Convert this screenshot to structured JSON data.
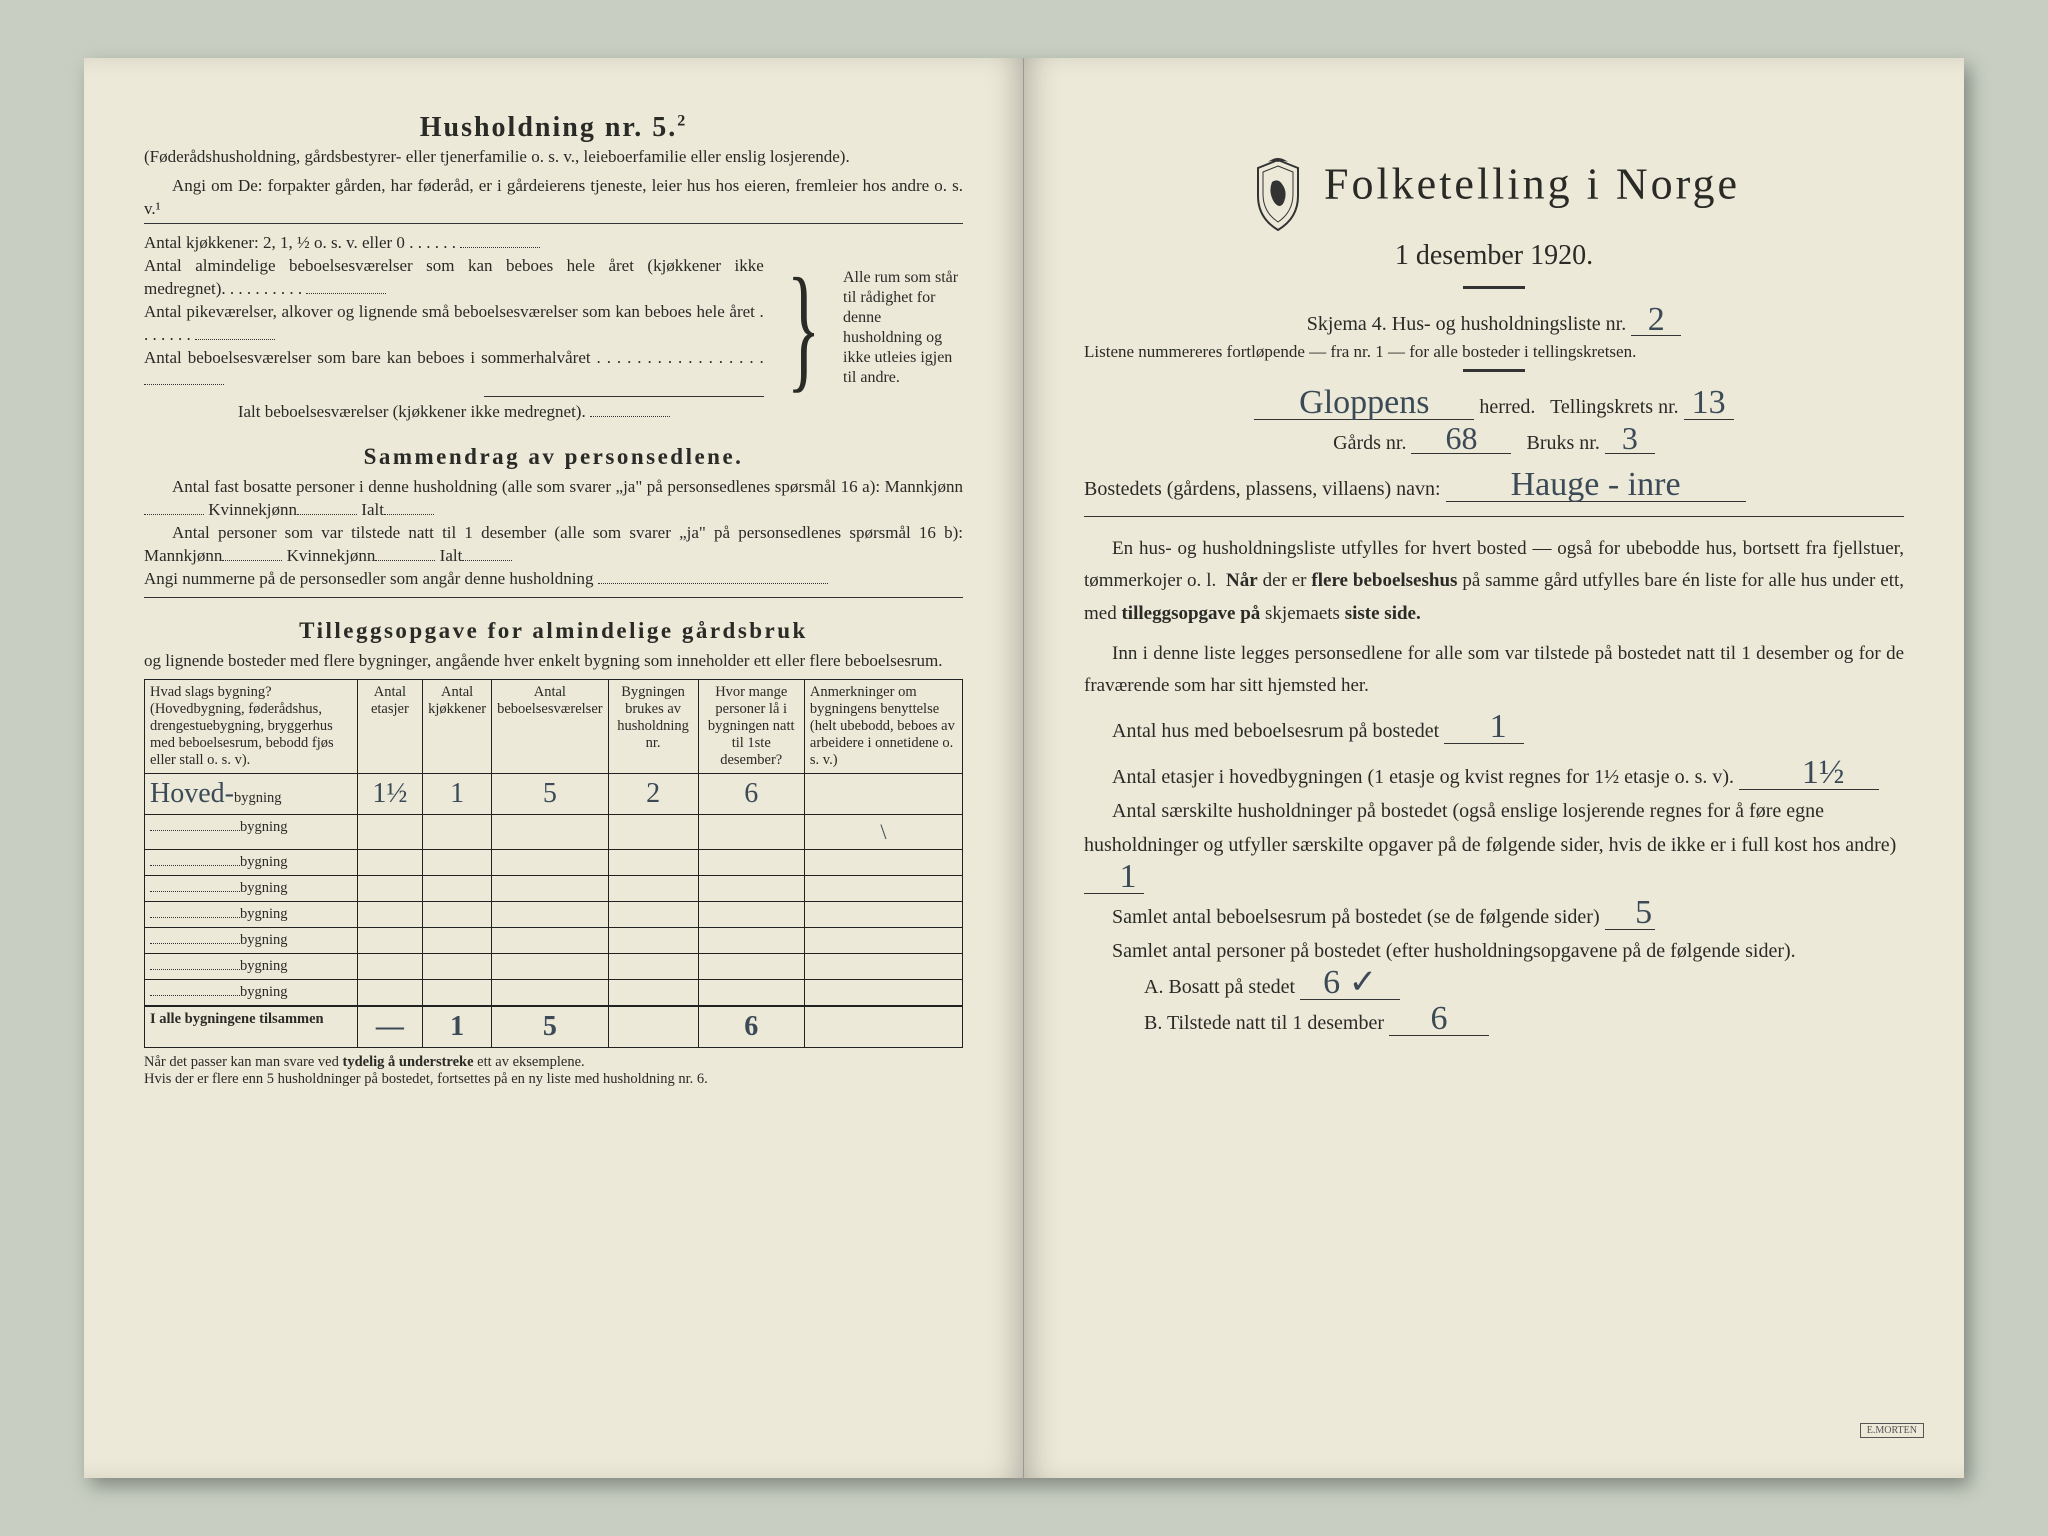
{
  "left": {
    "heading": "Husholdning nr. 5.",
    "heading_sup": "2",
    "sub1": "(Føderådshusholdning, gårdsbestyrer- eller tjenerfamilie o. s. v., leieboerfamilie eller enslig losjerende).",
    "sub2": "Angi om De: forpakter gården, har føderåd, er i gårdeierens tjeneste, leier hus hos eieren, fremleier hos andre o. s. v.¹",
    "kitchen_line": "Antal kjøkkener: 2, 1, ½ o. s. v. eller 0",
    "room_lines": [
      "Antal almindelige beboelsesværelser som kan beboes hele året (kjøkkener ikke medregnet).",
      "Antal pikeværelser, alkover og lignende små beboelsesværelser som kan beboes hele året",
      "Antal beboelsesværelser som bare kan beboes i sommerhalvåret"
    ],
    "room_total": "Ialt beboelsesværelser (kjøkkener ikke medregnet).",
    "brace_text": "Alle rum som står til rådighet for denne husholdning og ikke utleies igjen til andre.",
    "summary_title": "Sammendrag av personsedlene.",
    "summary_l1a": "Antal fast bosatte personer i denne husholdning (alle som svarer „ja\" på personsedlenes spørsmål 16 a): Mannkjønn",
    "summary_kvin": "Kvinnekjønn",
    "summary_ialt": "Ialt",
    "summary_l2a": "Antal personer som var tilstede natt til 1 desember (alle som svarer „ja\" på personsedlenes spørsmål 16 b): Mannkjønn",
    "summary_l3": "Angi nummerne på de personsedler som angår denne husholdning",
    "supp_title": "Tilleggsopgave for almindelige gårdsbruk",
    "supp_sub": "og lignende bosteder med flere bygninger, angående hver enkelt bygning som inneholder ett eller flere beboelsesrum.",
    "table": {
      "headers": [
        "Hvad slags bygning?\n(Hovedbygning, føderådshus, drengestuebygning, bryggerhus med beboelsesrum, bebodd fjøs eller stall o. s. v).",
        "Antal etasjer",
        "Antal kjøkkener",
        "Antal beboelsesværelser",
        "Bygningen brukes av husholdning nr.",
        "Hvor mange personer lå i bygningen natt til 1ste desember?",
        "Anmerkninger om bygningens benyttelse (helt ubebodd, beboes av arbeidere i onnetidene o. s. v.)"
      ],
      "row_suffix": "bygning",
      "first_row_prefix": "Hoved-",
      "first_row": [
        "1½",
        "1",
        "5",
        "2",
        "6",
        ""
      ],
      "totals_label": "I alle bygningene tilsammen",
      "totals": [
        "—",
        "1",
        "5",
        "",
        "6",
        ""
      ]
    },
    "hint": "Når det passer kan man svare ved tydelig å understreke ett av eksemplene.\nHvis der er flere enn 5 husholdninger på bostedet, fortsettes på en ny liste med husholdning nr. 6.",
    "hint_bold1": "tydelig å understreke"
  },
  "right": {
    "title": "Folketelling i Norge",
    "date": "1 desember 1920.",
    "skjema": "Skjema 4.  Hus- og husholdningsliste nr.",
    "skjema_val": "2",
    "list_note": "Listene nummereres fortløpende — fra nr. 1 — for alle bosteder i tellingskretsen.",
    "herred_label": "herred.",
    "herred_val": "Gloppens",
    "tellingskrets_label": "Tellingskrets nr.",
    "tellingskrets_val": "13",
    "gards_label": "Gårds nr.",
    "gards_val": "68",
    "bruks_label": "Bruks nr.",
    "bruks_val": "3",
    "bosted_label": "Bostedets (gårdens, plassens, villaens) navn:",
    "bosted_val": "Hauge - inre",
    "para1": "En hus- og husholdningsliste utfylles for hvert bosted — også for ubebodde hus, bortsett fra fjellstuer, tømmerkojer o. l.  Når der er flere beboelseshus på samme gård utfylles bare én liste for alle hus under ett, med tilleggsopgave på skjemaets siste side.",
    "para2": "Inn i denne liste legges personsedlene for alle som var tilstede på bostedet natt til 1 desember og for de fraværende som har sitt hjemsted her.",
    "line1": "Antal hus med beboelsesrum på bostedet",
    "line1_val": "1",
    "line2a": "Antal etasjer i hovedbygningen (1 etasje og kvist regnes for 1½ etasje o. s. v).",
    "line2_val": "1½",
    "line3": "Antal særskilte husholdninger på bostedet (også enslige losjerende regnes for å føre egne husholdninger og utfyller særskilte opgaver på de følgende sider, hvis de ikke er i full kost hos andre)",
    "line3_val": "1",
    "line4": "Samlet antal beboelsesrum på bostedet (se de følgende sider)",
    "line4_val": "5",
    "line5": "Samlet antal personer på bostedet (efter husholdningsopgavene på de følgende sider).",
    "lineA": "A.  Bosatt på stedet",
    "lineA_val": "6 ✓",
    "lineB": "B.  Tilstede natt til 1 desember",
    "lineB_val": "6"
  }
}
